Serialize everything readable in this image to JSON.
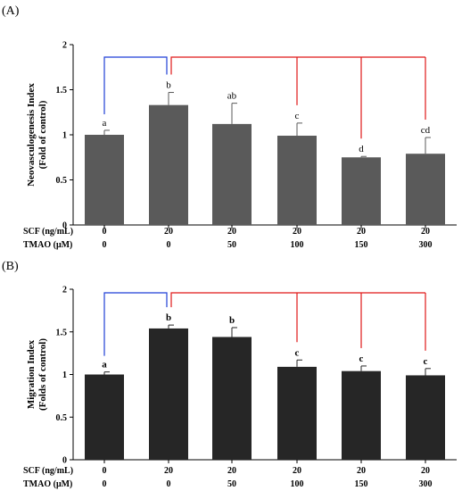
{
  "chart_data": [
    {
      "type": "bar",
      "panel_label": "(A)",
      "ylabel_lines": [
        "Neovasculogenesis Index",
        "(Fold of control)"
      ],
      "ylim": [
        0,
        2
      ],
      "yticks": [
        0,
        0.5,
        1,
        1.5,
        2
      ],
      "ytick_labels": [
        "0",
        "0.5",
        "1",
        "1.5",
        "2"
      ],
      "values": [
        1.0,
        1.33,
        1.12,
        0.99,
        0.75,
        0.79
      ],
      "errors": [
        0.05,
        0.14,
        0.23,
        0.14,
        0.01,
        0.18
      ],
      "significance": [
        "a",
        "b",
        "ab",
        "c",
        "d",
        "cd"
      ],
      "conditions": [
        {
          "label": "SCF (ng/mL)",
          "values": [
            "0",
            "20",
            "20",
            "20",
            "20",
            "20"
          ]
        },
        {
          "label": "TMAO (μM)",
          "values": [
            "0",
            "0",
            "50",
            "100",
            "150",
            "300"
          ]
        }
      ],
      "bar_color": "#5a5a5a",
      "bracket_colors": {
        "control": "#1f3fd6",
        "treatment": "#e01818"
      },
      "grid": false
    },
    {
      "type": "bar",
      "panel_label": "(B)",
      "ylabel_lines": [
        "Migration Index",
        "(Folds of control)"
      ],
      "ylim": [
        0,
        2
      ],
      "yticks": [
        0,
        0.5,
        1,
        1.5,
        2
      ],
      "ytick_labels": [
        "0",
        "0.5",
        "1",
        "1.5",
        "2"
      ],
      "values": [
        1.0,
        1.54,
        1.44,
        1.09,
        1.04,
        0.99
      ],
      "errors": [
        0.03,
        0.04,
        0.11,
        0.08,
        0.06,
        0.08
      ],
      "significance": [
        "a",
        "b",
        "b",
        "c",
        "c",
        "c"
      ],
      "conditions": [
        {
          "label": "SCF (ng/mL)",
          "values": [
            "0",
            "20",
            "20",
            "20",
            "20",
            "20"
          ]
        },
        {
          "label": "TMAO (μM)",
          "values": [
            "0",
            "0",
            "50",
            "100",
            "150",
            "300"
          ]
        }
      ],
      "bar_color": "#262626",
      "bracket_colors": {
        "control": "#1f3fd6",
        "treatment": "#e01818"
      },
      "grid": false
    }
  ]
}
